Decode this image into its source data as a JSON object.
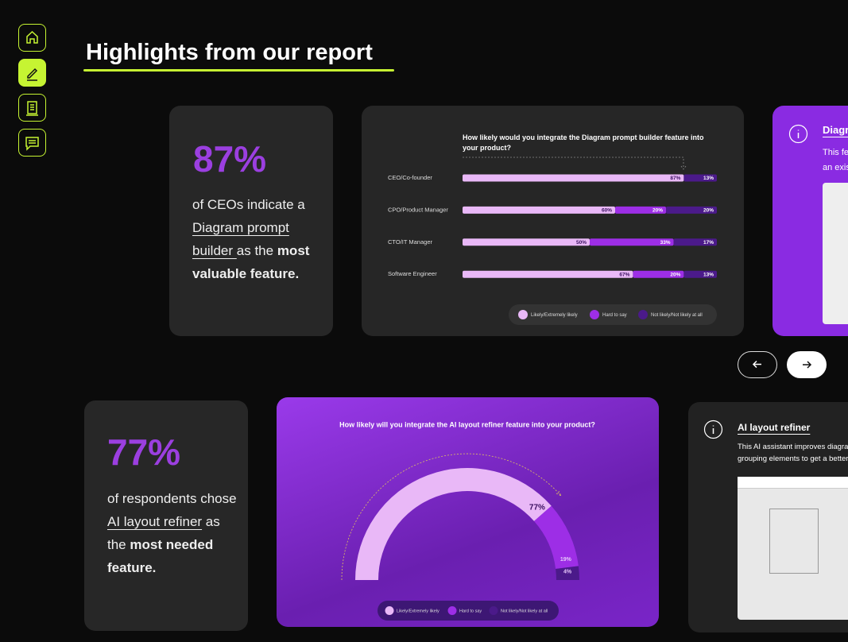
{
  "header": {
    "title": "Highlights from our report"
  },
  "card1": {
    "stat": "87%",
    "text": [
      "of CEOs indicate a ",
      "Diagram prompt builder ",
      "as the ",
      "most valuable feature."
    ]
  },
  "chart1": {
    "type": "bar",
    "title": "How likely would you integrate the Diagram prompt builder feature into your product?",
    "categories": [
      "CEO/Co-founder",
      "CPO/Product Manager",
      "CTO/IT Manager",
      "Software Engineer"
    ],
    "xlim": [
      0,
      100
    ],
    "series": [
      {
        "name": "Likely/Extremely likely",
        "color": "#e9b8f7",
        "values": [
          87,
          60,
          50,
          67
        ],
        "value_labels": [
          "87%",
          "60%",
          "50%",
          "67%"
        ]
      },
      {
        "name": "Hard to say",
        "color": "#9d2ee6",
        "values": [
          null,
          20,
          33,
          20
        ],
        "value_labels": [
          null,
          "20%",
          "33%",
          "20%"
        ]
      },
      {
        "name": "Not likely/Not likely at all",
        "color": "#4b1a8a",
        "values": [
          13,
          20,
          17,
          13
        ],
        "value_labels": [
          "13%",
          "20%",
          "17%",
          "13%"
        ]
      }
    ]
  },
  "card3": {
    "title": "Diagra",
    "text": [
      "This fe",
      "an exis"
    ]
  },
  "card2": {
    "stat": "77%",
    "text": [
      "of respondents chose ",
      "AI layout refiner",
      " as the ",
      "most needed feature."
    ]
  },
  "chart2": {
    "type": "gauge",
    "title": "How likely will you integrate the AI layout refiner feature into your product?",
    "range": [
      0,
      100
    ],
    "series": [
      {
        "name": "Likely/Extremely likely",
        "color": "#e9b8f7",
        "value": 77,
        "value_label": "77%"
      },
      {
        "name": "Hard to say",
        "color": "#9d2ee6",
        "value": 19,
        "value_label": "19%"
      },
      {
        "name": "Not likely/Not likely at all",
        "color": "#4b1a8a",
        "value": 4,
        "value_label": "4%"
      }
    ]
  },
  "card4": {
    "title": "AI layout refiner",
    "text": [
      "This AI assistant improves diagra",
      "grouping elements to get a better"
    ]
  }
}
